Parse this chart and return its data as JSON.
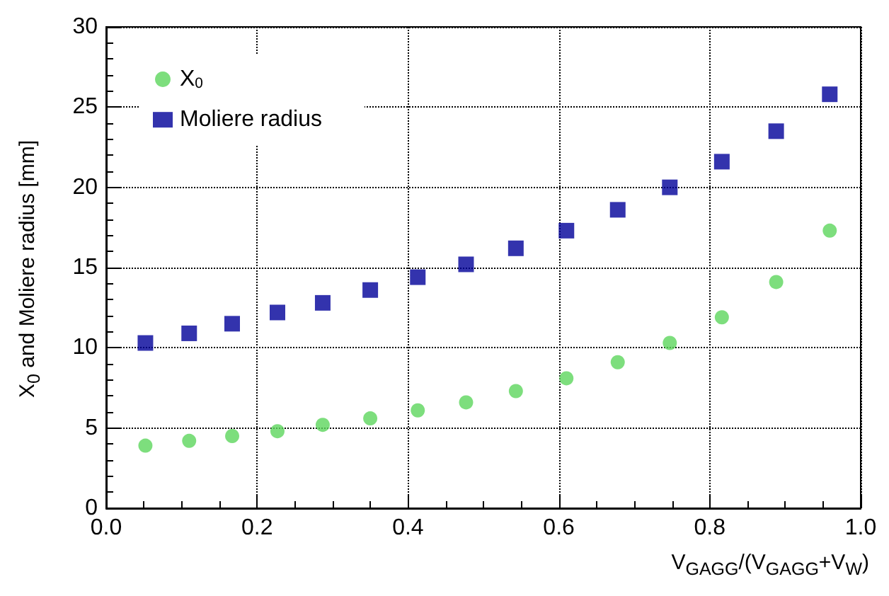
{
  "chart_data": {
    "type": "scatter",
    "xlabel": "V$_{GAGG}$/(V$_{GAGG}$+V$_{W}$)",
    "ylabel": "X$_{0}$ and Moliere radius [mm]",
    "x": [
      0.052,
      0.11,
      0.167,
      0.227,
      0.287,
      0.35,
      0.413,
      0.477,
      0.543,
      0.61,
      0.678,
      0.747,
      0.816,
      0.888,
      0.959
    ],
    "series": [
      {
        "name": "X$_{0}$",
        "color": "#5cd65c",
        "marker": "circle",
        "values": [
          3.9,
          4.2,
          4.5,
          4.8,
          5.2,
          5.6,
          6.1,
          6.6,
          7.3,
          8.1,
          9.1,
          10.3,
          11.9,
          14.1,
          17.3
        ]
      },
      {
        "name": "Moliere radius",
        "color": "#000099",
        "marker": "square",
        "values": [
          10.3,
          10.9,
          11.5,
          12.2,
          12.8,
          13.6,
          14.4,
          15.2,
          16.2,
          17.3,
          18.6,
          20.0,
          21.6,
          23.5,
          25.8
        ]
      }
    ],
    "xlim": [
      0,
      1
    ],
    "xticks": [
      {
        "value": 0,
        "label": "0.0"
      },
      {
        "value": 0.2,
        "label": "0.2"
      },
      {
        "value": 0.4,
        "label": "0.4"
      },
      {
        "value": 0.6,
        "label": "0.6"
      },
      {
        "value": 0.8,
        "label": "0.8"
      },
      {
        "value": 1,
        "label": "1.0"
      }
    ],
    "ylim": [
      0,
      30
    ],
    "yticks": [
      0,
      5,
      10,
      15,
      20,
      25,
      30
    ],
    "grid": true,
    "legend": "top left",
    "line_style": "dotted"
  }
}
